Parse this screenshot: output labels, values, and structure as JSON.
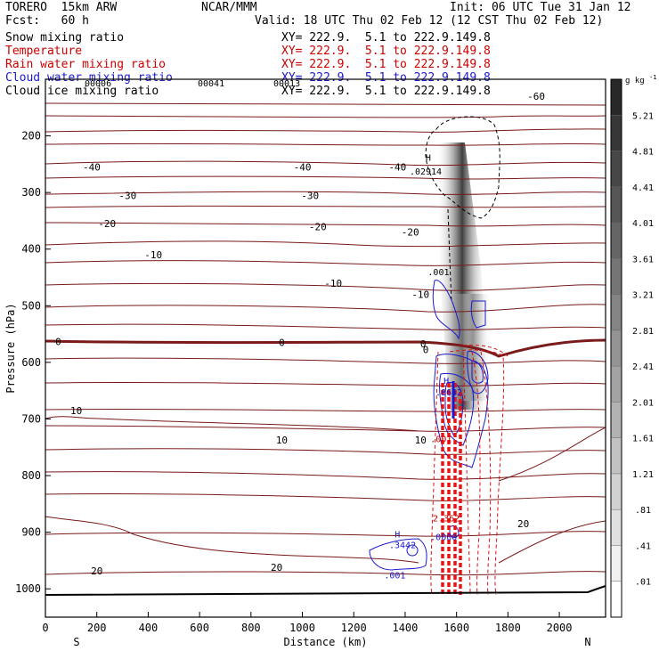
{
  "header": {
    "model": "TORERO  15km ARW",
    "org": "NCAR/MMM",
    "init": "Init: 06 UTC Tue 31 Jan 12",
    "fcst": "Fcst:   60 h",
    "valid": "Valid: 18 UTC Thu 02 Feb 12 (12 CST Thu 02 Feb 12)"
  },
  "fields": [
    {
      "name": "Snow mixing ratio",
      "xy": "XY= 222.9.  5.1 to 222.9.149.8",
      "color": "#000000"
    },
    {
      "name": "Temperature",
      "xy": "XY= 222.9.  5.1 to 222.9.149.8",
      "color": "#cc0000"
    },
    {
      "name": "Rain water mixing ratio",
      "xy": "XY= 222.9.  5.1 to 222.9.149.8",
      "color": "#cc0000"
    },
    {
      "name": "Cloud water mixing ratio",
      "xy": "XY= 222.9.  5.1 to 222.9.149.8",
      "color": "#1a1acc"
    },
    {
      "name": "Cloud ice mixing ratio",
      "xy": "XY= 222.9.  5.1 to 222.9.149.8",
      "color": "#000000"
    }
  ],
  "overlap_labels": [
    "00006",
    "00041",
    "00013"
  ],
  "chart_data": {
    "type": "cross-section contour",
    "title": "Snow mixing ratio / Temperature / Rain water / Cloud water / Cloud ice",
    "xlabel": "Distance (km)",
    "ylabel": "Pressure (hPa)",
    "xlim": [
      0,
      2180
    ],
    "ylim": [
      1050,
      100
    ],
    "x_ticks": [
      0,
      200,
      400,
      600,
      800,
      1000,
      1200,
      1400,
      1600,
      1800,
      2000
    ],
    "y_ticks": [
      200,
      300,
      400,
      500,
      600,
      700,
      800,
      900,
      1000
    ],
    "direction_labels": {
      "left": "S",
      "right": "N"
    },
    "colorbar": {
      "units": "g kg",
      "units_exp": "-1",
      "labels": [
        "5.21",
        "4.81",
        "4.41",
        "4.01",
        "3.61",
        "3.21",
        "2.81",
        "2.41",
        "2.01",
        "1.61",
        "1.21",
        ".81",
        ".41",
        ".01"
      ]
    },
    "temperature_contour_labels": [
      {
        "text": "-60",
        "x": 1910,
        "p": 130
      },
      {
        "text": "-40",
        "x": 180,
        "p": 255
      },
      {
        "text": "-40",
        "x": 1000,
        "p": 255
      },
      {
        "text": "-40",
        "x": 1370,
        "p": 255
      },
      {
        "text": "-30",
        "x": 320,
        "p": 305
      },
      {
        "text": "-30",
        "x": 1030,
        "p": 305
      },
      {
        "text": "-20",
        "x": 240,
        "p": 355
      },
      {
        "text": "-20",
        "x": 1060,
        "p": 360
      },
      {
        "text": "-20",
        "x": 1420,
        "p": 370
      },
      {
        "text": "-10",
        "x": 420,
        "p": 410
      },
      {
        "text": "-10",
        "x": 1120,
        "p": 460
      },
      {
        "text": "-10",
        "x": 1460,
        "p": 480
      },
      {
        "text": "0",
        "x": 50,
        "p": 563
      },
      {
        "text": "0",
        "x": 920,
        "p": 565
      },
      {
        "text": "0",
        "x": 1470,
        "p": 567
      },
      {
        "text": "0",
        "x": 1480,
        "p": 577
      },
      {
        "text": "10",
        "x": 120,
        "p": 685
      },
      {
        "text": "10",
        "x": 920,
        "p": 737
      },
      {
        "text": "10",
        "x": 1460,
        "p": 737
      },
      {
        "text": "20",
        "x": 200,
        "p": 968
      },
      {
        "text": "20",
        "x": 900,
        "p": 962
      },
      {
        "text": "20",
        "x": 1860,
        "p": 885
      }
    ],
    "other_annotations": [
      {
        "text": "H",
        "x": 1490,
        "p": 238,
        "color": "#000000"
      },
      {
        "text": ".02914",
        "x": 1480,
        "p": 262,
        "color": "#000000"
      },
      {
        "text": ".001",
        "x": 1530,
        "p": 440,
        "color": "#000000"
      },
      {
        "text": ".001",
        "x": 1540,
        "p": 735,
        "color": "#cc0000"
      },
      {
        "text": "H",
        "x": 1560,
        "p": 632,
        "color": "#1a1acc"
      },
      {
        "text": ".8642",
        "x": 1570,
        "p": 652,
        "color": "#1a1acc"
      },
      {
        "text": "2.362",
        "x": 1560,
        "p": 875,
        "color": "#cc0000"
      },
      {
        "text": ".0000",
        "x": 1550,
        "p": 908,
        "color": "#1a1acc"
      },
      {
        "text": "H",
        "x": 1370,
        "p": 903,
        "color": "#1a1acc"
      },
      {
        "text": ".3442",
        "x": 1390,
        "p": 922,
        "color": "#1a1acc"
      },
      {
        "text": ".001",
        "x": 1360,
        "p": 975,
        "color": "#1a1acc"
      }
    ]
  }
}
